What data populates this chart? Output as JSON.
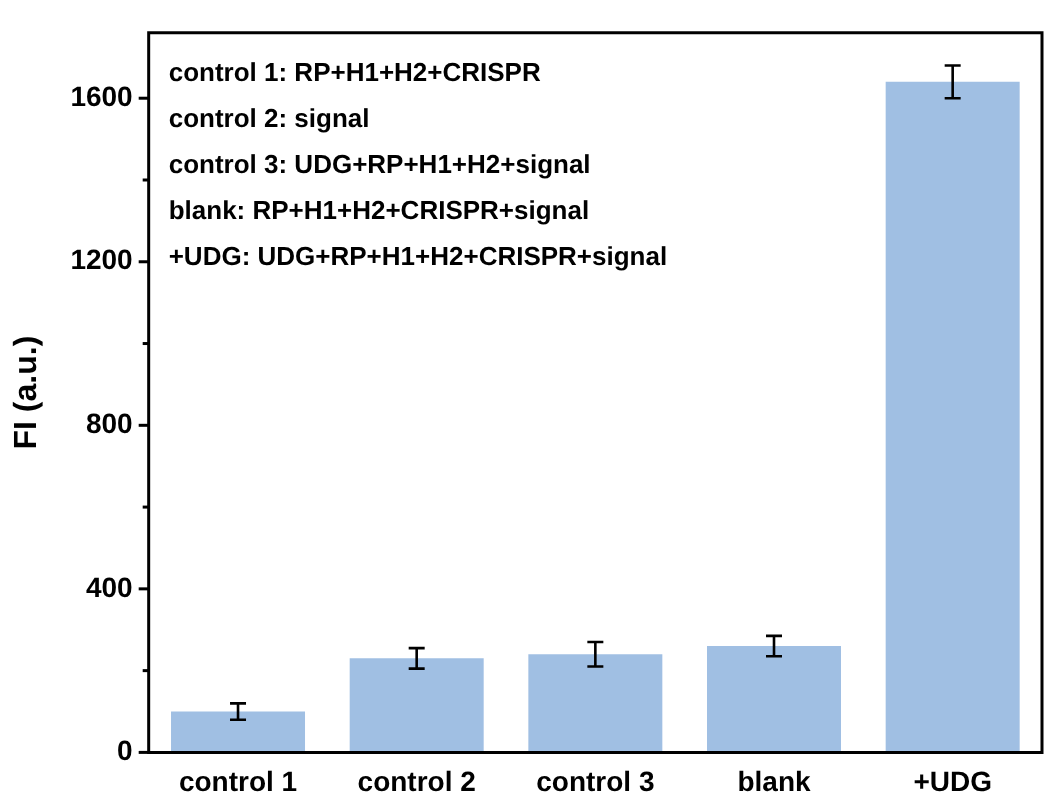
{
  "chart_data": {
    "type": "bar",
    "ylabel": "FI (a.u.)",
    "categories": [
      "control 1",
      "control 2",
      "control 3",
      "blank",
      "+UDG"
    ],
    "values": [
      100,
      230,
      240,
      260,
      1640
    ],
    "errors": [
      20,
      25,
      30,
      25,
      40
    ],
    "color": "#a0bfe3",
    "ylim": [
      0,
      1760
    ],
    "yticks": [
      0,
      {
        "value": 200,
        "label": null
      },
      400,
      {
        "value": 600,
        "label": null
      },
      800,
      {
        "value": 1000,
        "label": null
      },
      1200,
      {
        "value": 1400,
        "label": null
      },
      1600
    ],
    "grid": false,
    "legend": false,
    "annotations": [
      "control 1: RP+H1+H2+CRISPR",
      "control 2: signal",
      "control 3: UDG+RP+H1+H2+signal",
      "blank: RP+H1+H2+CRISPR+signal",
      "+UDG: UDG+RP+H1+H2+CRISPR+signal"
    ]
  }
}
